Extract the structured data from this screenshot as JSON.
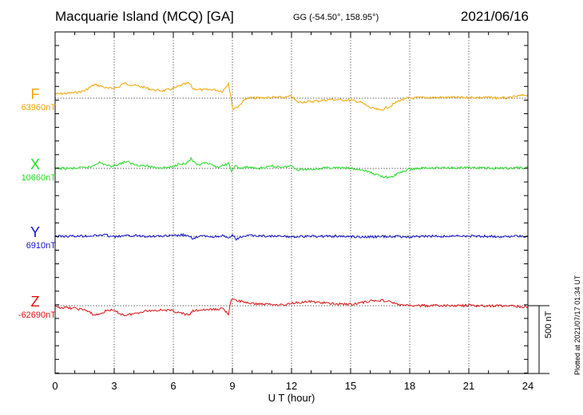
{
  "header": {
    "station": "Macquarie Island (MCQ)  [GA]",
    "coordinates": "GG (-54.50°, 158.95°)",
    "date": "2021/06/16"
  },
  "footer": {
    "plotted": "Plotted at 2021/07/17 01:34 UT",
    "scale": "500 nT"
  },
  "chart_data": {
    "type": "line",
    "xlabel": "U T (hour)",
    "xlim": [
      0,
      24
    ],
    "xticks": [
      "0",
      "3",
      "6",
      "9",
      "12",
      "15",
      "18",
      "21",
      "24"
    ],
    "grid": true,
    "scale_bar_nT": 500,
    "series": [
      {
        "name": "F",
        "baseline_label": "63960nT",
        "color": "#f5a400",
        "baseline_nT": 63960,
        "points": [
          [
            0,
            63990
          ],
          [
            1,
            64000
          ],
          [
            1.5,
            64015
          ],
          [
            2,
            64060
          ],
          [
            2.3,
            64050
          ],
          [
            2.7,
            64030
          ],
          [
            3.2,
            64040
          ],
          [
            3.5,
            64070
          ],
          [
            4,
            64055
          ],
          [
            4.5,
            64040
          ],
          [
            5,
            64020
          ],
          [
            5.5,
            64015
          ],
          [
            6,
            64030
          ],
          [
            6.5,
            64060
          ],
          [
            6.8,
            64070
          ],
          [
            7,
            64030
          ],
          [
            7.5,
            64020
          ],
          [
            8,
            64025
          ],
          [
            8.5,
            64010
          ],
          [
            8.8,
            64070
          ],
          [
            8.95,
            63950
          ],
          [
            9,
            63880
          ],
          [
            9.3,
            63900
          ],
          [
            9.7,
            63960
          ],
          [
            10,
            63960
          ],
          [
            11,
            63965
          ],
          [
            11.7,
            63965
          ],
          [
            12,
            63975
          ],
          [
            12.3,
            63930
          ],
          [
            13,
            63935
          ],
          [
            14,
            63950
          ],
          [
            15,
            63945
          ],
          [
            15.5,
            63930
          ],
          [
            16,
            63890
          ],
          [
            16.5,
            63870
          ],
          [
            17,
            63900
          ],
          [
            17.5,
            63945
          ],
          [
            18,
            63960
          ],
          [
            19,
            63965
          ],
          [
            20,
            63965
          ],
          [
            21,
            63965
          ],
          [
            22,
            63965
          ],
          [
            23,
            63960
          ],
          [
            23.5,
            63975
          ],
          [
            24,
            63985
          ]
        ]
      },
      {
        "name": "X",
        "baseline_label": "10660nT",
        "color": "#22dd22",
        "baseline_nT": 10660,
        "points": [
          [
            0,
            10660
          ],
          [
            1,
            10660
          ],
          [
            1.8,
            10670
          ],
          [
            2.2,
            10705
          ],
          [
            2.5,
            10690
          ],
          [
            2.8,
            10675
          ],
          [
            3.2,
            10690
          ],
          [
            3.6,
            10710
          ],
          [
            4,
            10690
          ],
          [
            4.5,
            10680
          ],
          [
            5,
            10670
          ],
          [
            5.5,
            10665
          ],
          [
            6,
            10670
          ],
          [
            6.3,
            10700
          ],
          [
            6.6,
            10690
          ],
          [
            6.9,
            10730
          ],
          [
            7.2,
            10680
          ],
          [
            7.6,
            10700
          ],
          [
            8,
            10680
          ],
          [
            8.4,
            10670
          ],
          [
            8.8,
            10700
          ],
          [
            8.95,
            10630
          ],
          [
            9.1,
            10680
          ],
          [
            9.4,
            10660
          ],
          [
            9.8,
            10670
          ],
          [
            10.3,
            10660
          ],
          [
            11,
            10675
          ],
          [
            11.7,
            10670
          ],
          [
            12,
            10680
          ],
          [
            12.3,
            10650
          ],
          [
            13,
            10655
          ],
          [
            14,
            10665
          ],
          [
            15,
            10660
          ],
          [
            15.5,
            10650
          ],
          [
            16,
            10630
          ],
          [
            16.5,
            10605
          ],
          [
            17,
            10590
          ],
          [
            17.5,
            10630
          ],
          [
            18,
            10655
          ],
          [
            19,
            10665
          ],
          [
            20,
            10665
          ],
          [
            21,
            10665
          ],
          [
            22,
            10662
          ],
          [
            23,
            10662
          ],
          [
            24,
            10665
          ]
        ]
      },
      {
        "name": "Y",
        "baseline_label": "6910nT",
        "color": "#1010cc",
        "baseline_nT": 6910,
        "points": [
          [
            0,
            6910
          ],
          [
            1,
            6910
          ],
          [
            2,
            6915
          ],
          [
            2.5,
            6920
          ],
          [
            3,
            6905
          ],
          [
            3.5,
            6912
          ],
          [
            4,
            6915
          ],
          [
            5,
            6910
          ],
          [
            6,
            6913
          ],
          [
            6.5,
            6920
          ],
          [
            7,
            6895
          ],
          [
            7.5,
            6912
          ],
          [
            8,
            6905
          ],
          [
            8.5,
            6915
          ],
          [
            8.8,
            6890
          ],
          [
            9,
            6920
          ],
          [
            9.2,
            6885
          ],
          [
            9.5,
            6910
          ],
          [
            10,
            6915
          ],
          [
            11,
            6910
          ],
          [
            12,
            6906
          ],
          [
            13,
            6910
          ],
          [
            14,
            6910
          ],
          [
            15,
            6908
          ],
          [
            16,
            6905
          ],
          [
            17,
            6910
          ],
          [
            18,
            6905
          ],
          [
            19,
            6910
          ],
          [
            20,
            6910
          ],
          [
            21,
            6912
          ],
          [
            22,
            6910
          ],
          [
            23,
            6908
          ],
          [
            24,
            6910
          ]
        ]
      },
      {
        "name": "Z",
        "baseline_label": "-62690nT",
        "color": "#dd1111",
        "baseline_nT": -62690,
        "points": [
          [
            0,
            -62700
          ],
          [
            1,
            -62710
          ],
          [
            1.5,
            -62720
          ],
          [
            2,
            -62760
          ],
          [
            2.3,
            -62750
          ],
          [
            2.7,
            -62720
          ],
          [
            3,
            -62730
          ],
          [
            3.5,
            -62760
          ],
          [
            4,
            -62750
          ],
          [
            4.5,
            -62730
          ],
          [
            5,
            -62725
          ],
          [
            5.5,
            -62720
          ],
          [
            6,
            -62730
          ],
          [
            6.5,
            -62750
          ],
          [
            6.8,
            -62760
          ],
          [
            7,
            -62730
          ],
          [
            7.5,
            -62720
          ],
          [
            8,
            -62720
          ],
          [
            8.5,
            -62710
          ],
          [
            8.8,
            -62750
          ],
          [
            8.95,
            -62640
          ],
          [
            9.1,
            -62650
          ],
          [
            9.5,
            -62660
          ],
          [
            10,
            -62675
          ],
          [
            11,
            -62680
          ],
          [
            11.7,
            -62685
          ],
          [
            12,
            -62670
          ],
          [
            12.5,
            -62665
          ],
          [
            13,
            -62660
          ],
          [
            14,
            -62675
          ],
          [
            15,
            -62680
          ],
          [
            15.5,
            -62670
          ],
          [
            16,
            -62655
          ],
          [
            16.5,
            -62650
          ],
          [
            17,
            -62660
          ],
          [
            17.5,
            -62685
          ],
          [
            18,
            -62690
          ],
          [
            19,
            -62690
          ],
          [
            20,
            -62690
          ],
          [
            21,
            -62690
          ],
          [
            22,
            -62692
          ],
          [
            23,
            -62690
          ],
          [
            24,
            -62700
          ]
        ]
      }
    ]
  }
}
